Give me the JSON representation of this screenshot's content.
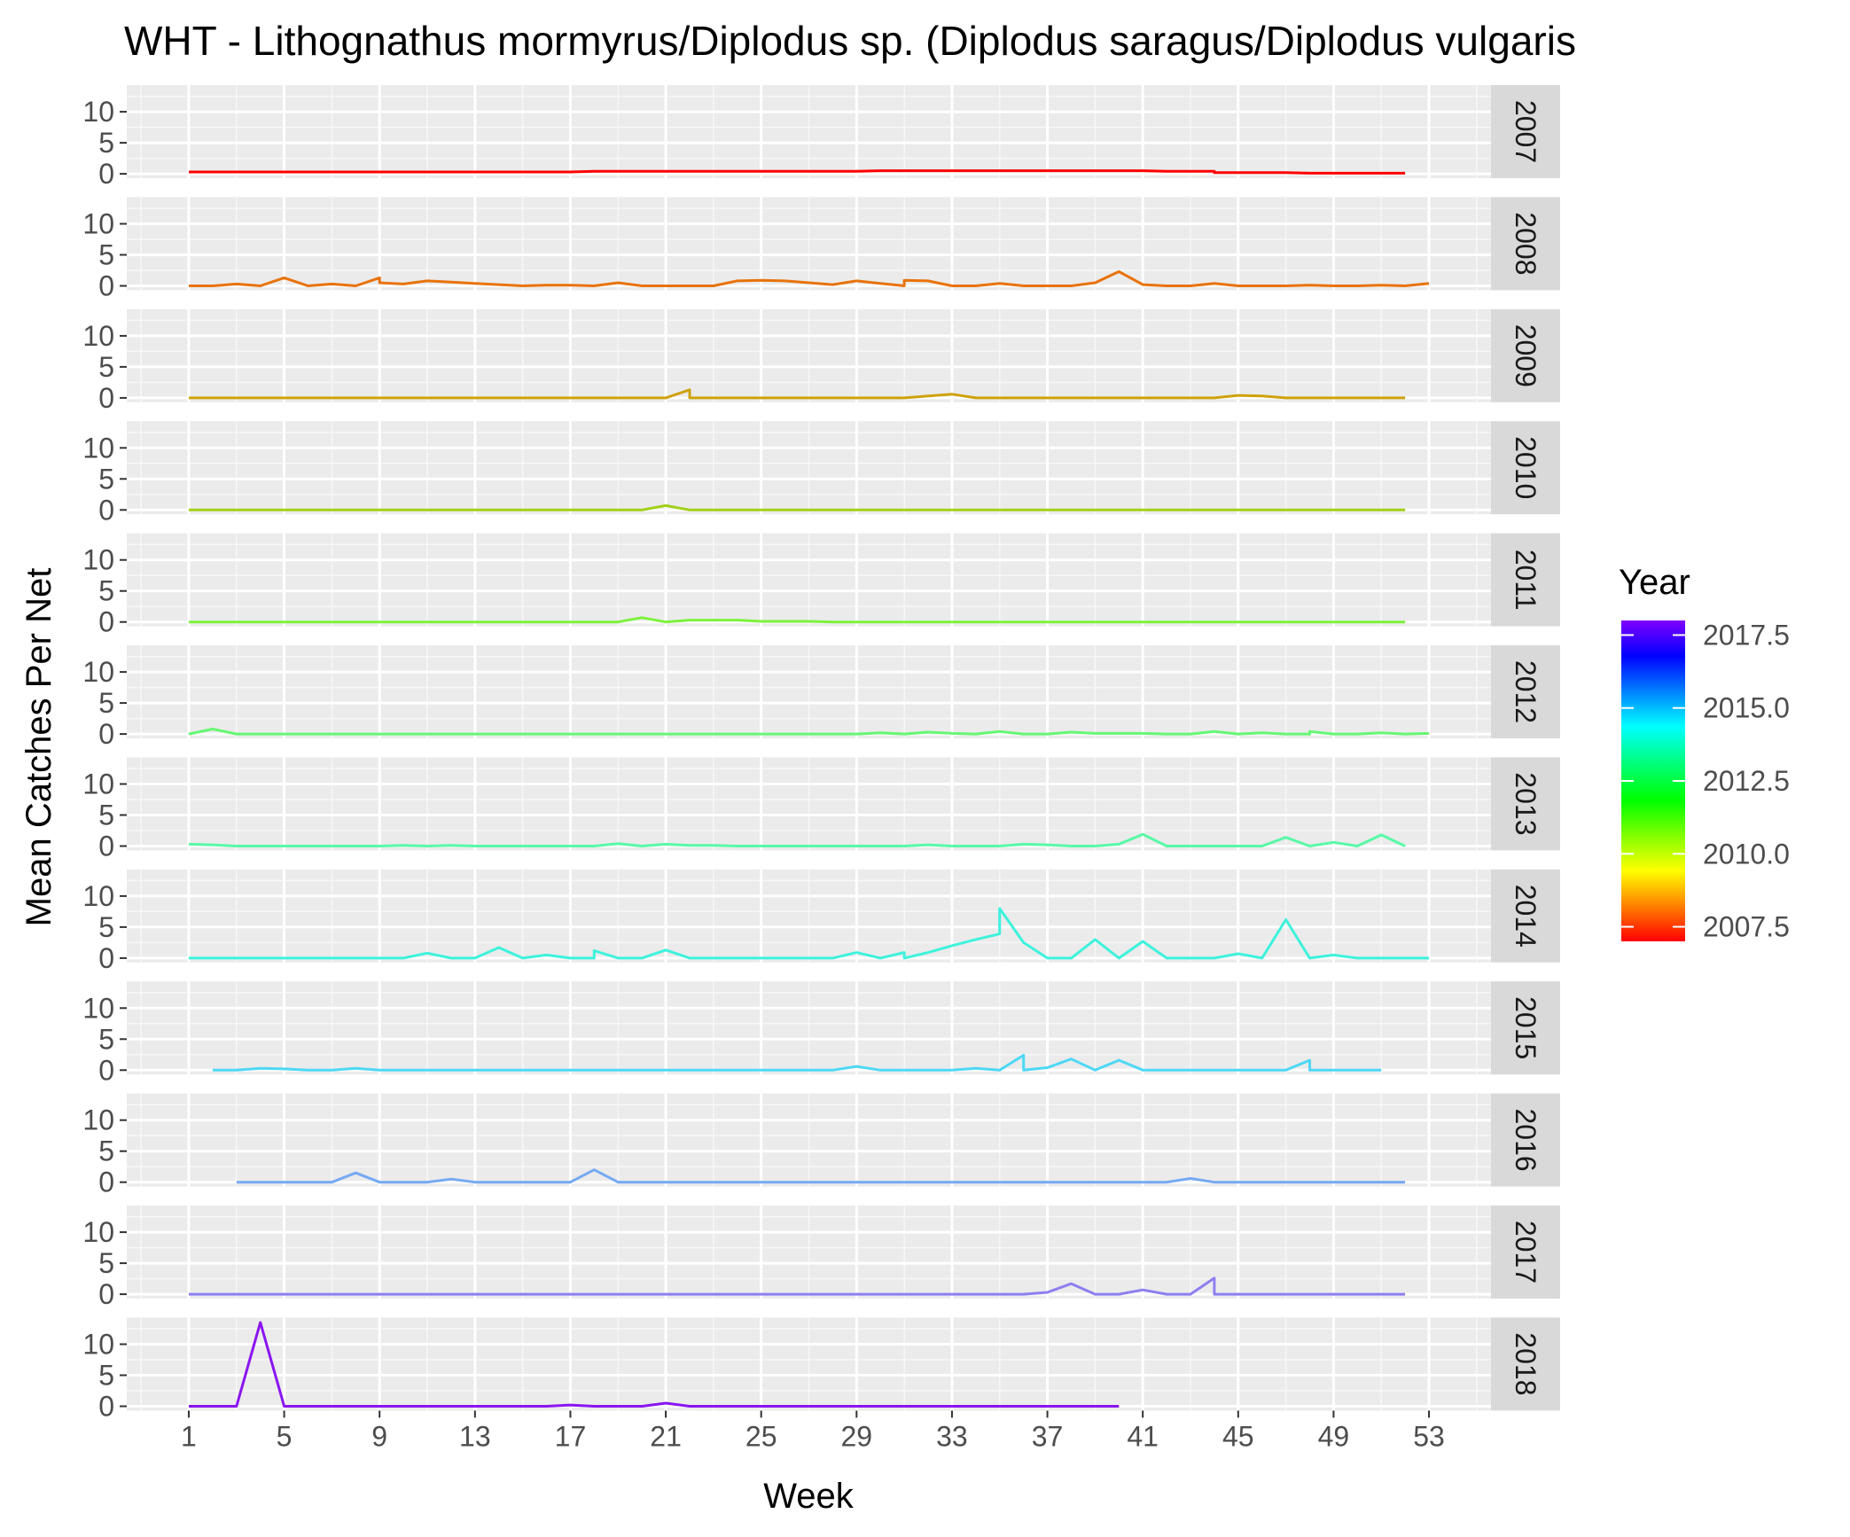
{
  "chart_data": {
    "type": "line",
    "title": "WHT - Lithognathus mormyrus/Diplodus sp. (Diplodus saragus/Diplodus vulgaris",
    "xlabel": "Week",
    "ylabel": "Mean Catches Per Net",
    "xlim": [
      -1.6,
      55.6
    ],
    "ylim": [
      -0.7,
      14.3
    ],
    "x_ticks": [
      1,
      5,
      9,
      13,
      17,
      21,
      25,
      29,
      33,
      37,
      41,
      45,
      49,
      53
    ],
    "y_ticks": [
      0,
      5,
      10
    ],
    "facet_by": "year",
    "grid": true,
    "legend": {
      "title": "Year",
      "placement": "right",
      "type": "colorbar",
      "range": [
        2007,
        2018
      ],
      "ticks": [
        2007.5,
        2010.0,
        2012.5,
        2015.0,
        2017.5
      ],
      "tick_labels": [
        "2007.5",
        "2010.0",
        "2012.5",
        "2015.0",
        "2017.5"
      ],
      "colors": [
        "#ff0000",
        "#ff8000",
        "#ffff00",
        "#80ff00",
        "#00ff00",
        "#00ff80",
        "#00ffff",
        "#0080ff",
        "#0000ff",
        "#8000ff"
      ]
    },
    "series": [
      {
        "name": "2007",
        "color": "#ff0000",
        "points": [
          [
            1,
            0.3
          ],
          [
            17,
            0.3
          ],
          [
            18,
            0.4
          ],
          [
            29,
            0.4
          ],
          [
            30,
            0.5
          ],
          [
            41,
            0.5
          ],
          [
            42,
            0.4
          ],
          [
            44,
            0.4
          ],
          [
            44,
            0.2
          ],
          [
            47,
            0.2
          ],
          [
            48,
            0.1
          ],
          [
            52,
            0.1
          ]
        ]
      },
      {
        "name": "2008",
        "color": "#e8730b",
        "points": [
          [
            1,
            0
          ],
          [
            2,
            0
          ],
          [
            3,
            0.3
          ],
          [
            4,
            0
          ],
          [
            5,
            1.3
          ],
          [
            6,
            0
          ],
          [
            7,
            0.3
          ],
          [
            8,
            0
          ],
          [
            9,
            1.3
          ],
          [
            9,
            0.5
          ],
          [
            10,
            0.3
          ],
          [
            11,
            0.8
          ],
          [
            12,
            0.6
          ],
          [
            13,
            0.4
          ],
          [
            14,
            0.2
          ],
          [
            15,
            0
          ],
          [
            16,
            0.1
          ],
          [
            17,
            0.1
          ],
          [
            18,
            0
          ],
          [
            19,
            0.5
          ],
          [
            20,
            0
          ],
          [
            21,
            0
          ],
          [
            22,
            0
          ],
          [
            23,
            0
          ],
          [
            24,
            0.8
          ],
          [
            25,
            0.9
          ],
          [
            26,
            0.8
          ],
          [
            27,
            0.5
          ],
          [
            28,
            0.2
          ],
          [
            29,
            0.8
          ],
          [
            30,
            0.4
          ],
          [
            31,
            0
          ],
          [
            31,
            0.9
          ],
          [
            32,
            0.8
          ],
          [
            33,
            0
          ],
          [
            34,
            0
          ],
          [
            35,
            0.4
          ],
          [
            36,
            0
          ],
          [
            37,
            0
          ],
          [
            38,
            0
          ],
          [
            39,
            0.5
          ],
          [
            40,
            2.3
          ],
          [
            41,
            0.2
          ],
          [
            42,
            0
          ],
          [
            43,
            0
          ],
          [
            44,
            0.4
          ],
          [
            45,
            0
          ],
          [
            46,
            0
          ],
          [
            47,
            0
          ],
          [
            48,
            0.1
          ],
          [
            49,
            0
          ],
          [
            50,
            0
          ],
          [
            51,
            0.1
          ],
          [
            52,
            0
          ],
          [
            53,
            0.4
          ]
        ]
      },
      {
        "name": "2009",
        "color": "#cfa20c",
        "points": [
          [
            1,
            0
          ],
          [
            20,
            0
          ],
          [
            21,
            0
          ],
          [
            22,
            1.3
          ],
          [
            22,
            0
          ],
          [
            26,
            0
          ],
          [
            31,
            0
          ],
          [
            32,
            0.3
          ],
          [
            33,
            0.6
          ],
          [
            34,
            0
          ],
          [
            44,
            0
          ],
          [
            45,
            0.4
          ],
          [
            46,
            0.3
          ],
          [
            47,
            0
          ],
          [
            52,
            0
          ]
        ]
      },
      {
        "name": "2010",
        "color": "#a2d01a",
        "points": [
          [
            1,
            0
          ],
          [
            20,
            0
          ],
          [
            21,
            0.7
          ],
          [
            22,
            0
          ],
          [
            52,
            0
          ]
        ]
      },
      {
        "name": "2011",
        "color": "#7cf23d",
        "points": [
          [
            1,
            0
          ],
          [
            19,
            0
          ],
          [
            20,
            0.7
          ],
          [
            21,
            0
          ],
          [
            22,
            0.3
          ],
          [
            24,
            0.3
          ],
          [
            25,
            0.1
          ],
          [
            27,
            0.1
          ],
          [
            28,
            0
          ],
          [
            52,
            0
          ]
        ]
      },
      {
        "name": "2012",
        "color": "#66f773",
        "points": [
          [
            1,
            0
          ],
          [
            2,
            0.8
          ],
          [
            3,
            0
          ],
          [
            29,
            0
          ],
          [
            30,
            0.2
          ],
          [
            31,
            0
          ],
          [
            32,
            0.3
          ],
          [
            33,
            0.1
          ],
          [
            34,
            0
          ],
          [
            35,
            0.4
          ],
          [
            36,
            0
          ],
          [
            37,
            0
          ],
          [
            38,
            0.3
          ],
          [
            39,
            0.1
          ],
          [
            41,
            0.1
          ],
          [
            42,
            0
          ],
          [
            43,
            0
          ],
          [
            44,
            0.4
          ],
          [
            45,
            0
          ],
          [
            46,
            0.2
          ],
          [
            47,
            0
          ],
          [
            48,
            0
          ],
          [
            48,
            0.4
          ],
          [
            49,
            0
          ],
          [
            50,
            0
          ],
          [
            51,
            0.2
          ],
          [
            52,
            0
          ],
          [
            53,
            0.1
          ]
        ]
      },
      {
        "name": "2013",
        "color": "#58f9a6",
        "points": [
          [
            1,
            0.3
          ],
          [
            2,
            0.2
          ],
          [
            3,
            0
          ],
          [
            9,
            0
          ],
          [
            10,
            0.1
          ],
          [
            11,
            0
          ],
          [
            12,
            0.1
          ],
          [
            13,
            0
          ],
          [
            18,
            0
          ],
          [
            19,
            0.4
          ],
          [
            20,
            0
          ],
          [
            21,
            0.3
          ],
          [
            22,
            0.1
          ],
          [
            23,
            0.1
          ],
          [
            24,
            0
          ],
          [
            31,
            0
          ],
          [
            32,
            0.2
          ],
          [
            33,
            0
          ],
          [
            35,
            0
          ],
          [
            36,
            0.3
          ],
          [
            37,
            0.2
          ],
          [
            38,
            0
          ],
          [
            39,
            0
          ],
          [
            40,
            0.3
          ],
          [
            41,
            1.9
          ],
          [
            42,
            0
          ],
          [
            46,
            0
          ],
          [
            47,
            1.4
          ],
          [
            48,
            0
          ],
          [
            49,
            0.6
          ],
          [
            50,
            0
          ],
          [
            51,
            1.8
          ],
          [
            52,
            0
          ]
        ]
      },
      {
        "name": "2014",
        "color": "#3ef2dc",
        "points": [
          [
            1,
            0
          ],
          [
            10,
            0
          ],
          [
            11,
            0.8
          ],
          [
            12,
            0
          ],
          [
            13,
            0
          ],
          [
            14,
            1.7
          ],
          [
            15,
            0
          ],
          [
            16,
            0.5
          ],
          [
            17,
            0
          ],
          [
            18,
            0
          ],
          [
            18,
            1.2
          ],
          [
            19,
            0
          ],
          [
            20,
            0
          ],
          [
            21,
            1.3
          ],
          [
            22,
            0
          ],
          [
            28,
            0
          ],
          [
            29,
            0.9
          ],
          [
            30,
            0
          ],
          [
            31,
            0.9
          ],
          [
            31,
            0
          ],
          [
            32,
            0.9
          ],
          [
            33,
            2.0
          ],
          [
            34,
            3.0
          ],
          [
            35,
            3.9
          ],
          [
            35,
            8.0
          ],
          [
            36,
            2.5
          ],
          [
            37,
            0
          ],
          [
            38,
            0
          ],
          [
            39,
            3.0
          ],
          [
            40,
            0
          ],
          [
            41,
            2.7
          ],
          [
            42,
            0
          ],
          [
            44,
            0
          ],
          [
            45,
            0.7
          ],
          [
            46,
            0
          ],
          [
            47,
            6.2
          ],
          [
            48,
            0
          ],
          [
            49,
            0.5
          ],
          [
            50,
            0
          ],
          [
            53,
            0
          ]
        ]
      },
      {
        "name": "2015",
        "color": "#4ed8f5",
        "points": [
          [
            2,
            0
          ],
          [
            3,
            0
          ],
          [
            4,
            0.3
          ],
          [
            5,
            0.2
          ],
          [
            6,
            0
          ],
          [
            7,
            0
          ],
          [
            8,
            0.3
          ],
          [
            9,
            0
          ],
          [
            28,
            0
          ],
          [
            29,
            0.6
          ],
          [
            30,
            0
          ],
          [
            33,
            0
          ],
          [
            34,
            0.3
          ],
          [
            35,
            0
          ],
          [
            36,
            2.4
          ],
          [
            36,
            0
          ],
          [
            37,
            0.4
          ],
          [
            38,
            1.8
          ],
          [
            39,
            0
          ],
          [
            40,
            1.6
          ],
          [
            41,
            0
          ],
          [
            47,
            0
          ],
          [
            48,
            1.6
          ],
          [
            48,
            0
          ],
          [
            51,
            0
          ]
        ]
      },
      {
        "name": "2016",
        "color": "#75a9f2",
        "points": [
          [
            3,
            0
          ],
          [
            7,
            0
          ],
          [
            8,
            1.5
          ],
          [
            9,
            0
          ],
          [
            11,
            0
          ],
          [
            12,
            0.5
          ],
          [
            13,
            0
          ],
          [
            17,
            0
          ],
          [
            18,
            2.0
          ],
          [
            19,
            0
          ],
          [
            42,
            0
          ],
          [
            43,
            0.6
          ],
          [
            44,
            0
          ],
          [
            52,
            0
          ]
        ]
      },
      {
        "name": "2017",
        "color": "#8d7ff0",
        "points": [
          [
            1,
            0
          ],
          [
            36,
            0
          ],
          [
            37,
            0.3
          ],
          [
            38,
            1.7
          ],
          [
            39,
            0
          ],
          [
            40,
            0
          ],
          [
            41,
            0.7
          ],
          [
            42,
            0
          ],
          [
            43,
            0
          ],
          [
            44,
            2.6
          ],
          [
            44,
            0
          ],
          [
            52,
            0
          ]
        ]
      },
      {
        "name": "2018",
        "color": "#8a15f0",
        "points": [
          [
            1,
            0
          ],
          [
            3,
            0
          ],
          [
            4,
            13.5
          ],
          [
            5,
            0
          ],
          [
            16,
            0
          ],
          [
            17,
            0.2
          ],
          [
            18,
            0
          ],
          [
            20,
            0
          ],
          [
            21,
            0.5
          ],
          [
            22,
            0
          ],
          [
            40,
            0
          ]
        ]
      }
    ]
  }
}
